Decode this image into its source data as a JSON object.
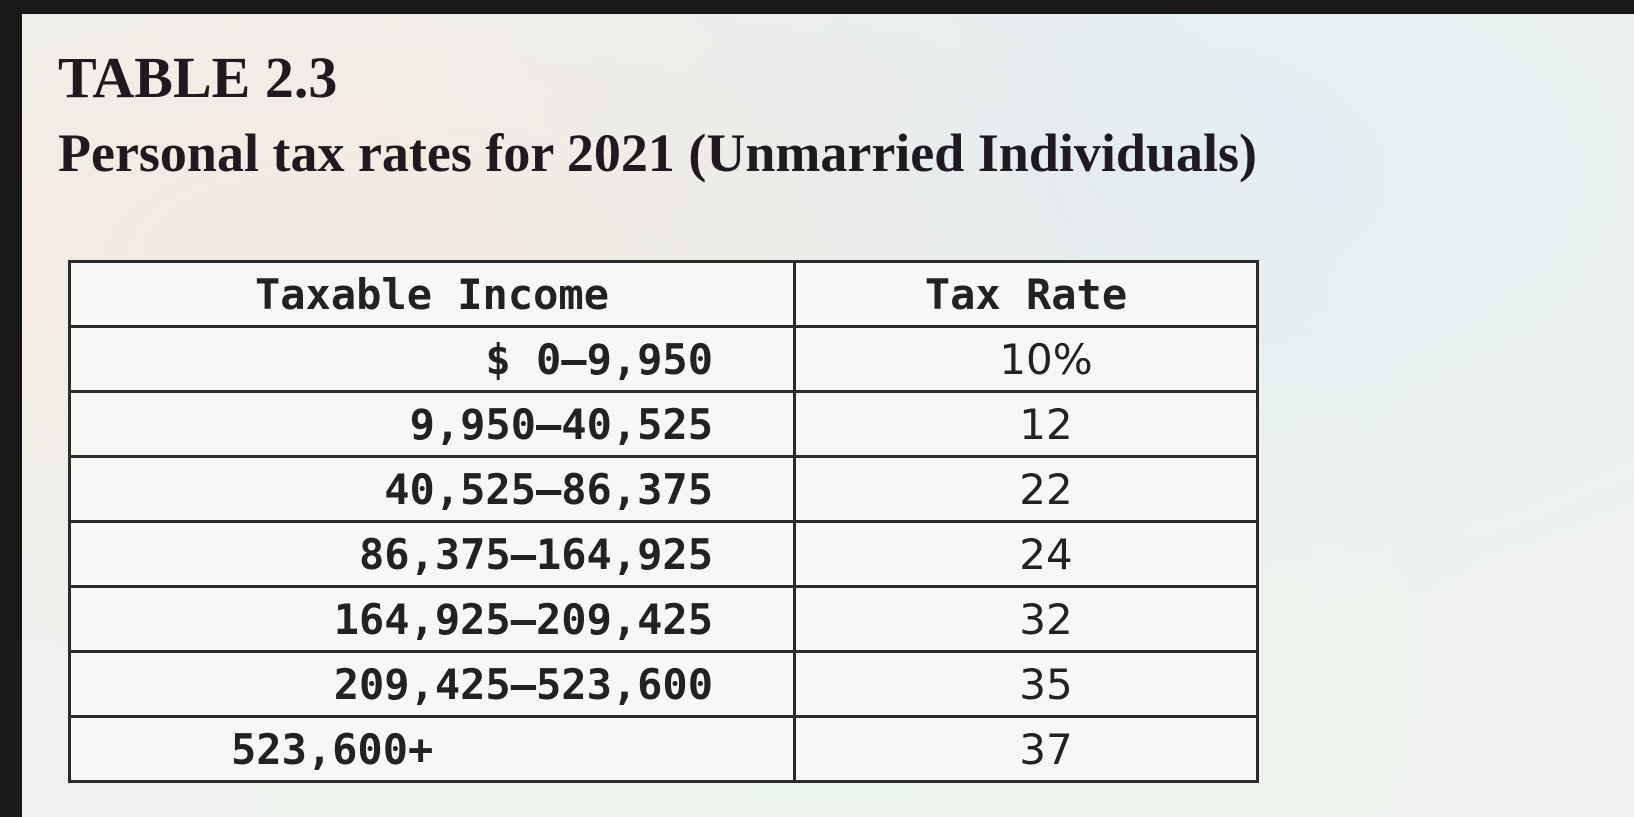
{
  "caption": {
    "table_number": "TABLE 2.3",
    "title": "Personal tax rates for 2021 (Unmarried Individuals)"
  },
  "table": {
    "headers": [
      "Taxable Income",
      "Tax Rate"
    ],
    "rows": [
      {
        "income": "$ 0–9,950",
        "rate": "10%"
      },
      {
        "income": "9,950–40,525",
        "rate": "12"
      },
      {
        "income": "40,525–86,375",
        "rate": "22"
      },
      {
        "income": "86,375–164,925",
        "rate": "24"
      },
      {
        "income": "164,925–209,425",
        "rate": "32"
      },
      {
        "income": "209,425–523,600",
        "rate": "35"
      },
      {
        "income": "523,600+",
        "rate": "37"
      }
    ]
  }
}
